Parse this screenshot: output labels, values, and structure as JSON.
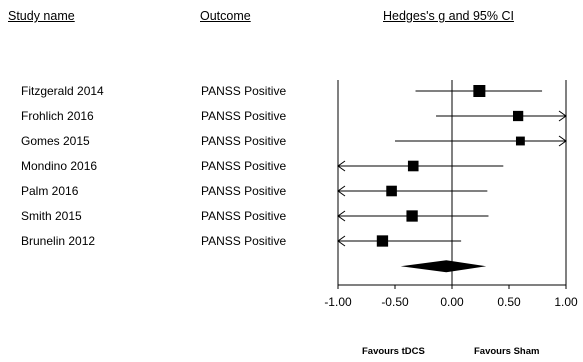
{
  "headers": {
    "study": "Study name",
    "outcome": "Outcome",
    "ci": "Hedges's g and 95% CI"
  },
  "favours": {
    "left": "Favours tDCS",
    "right": "Favours Sham"
  },
  "chart_data": {
    "type": "forest",
    "title": "",
    "xlabel": "",
    "ylabel": "",
    "xlim": [
      -1.0,
      1.0
    ],
    "x_ticks": [
      -1.0,
      -0.5,
      0.0,
      0.5,
      1.0
    ],
    "x_tick_labels": [
      "-1.00",
      "-0.50",
      "0.00",
      "0.50",
      "1.00"
    ],
    "grid": false,
    "studies": [
      {
        "name": "Fitzgerald 2014",
        "outcome": "PANSS Positive",
        "g": 0.24,
        "lower": -0.32,
        "upper": 0.79,
        "weight": 1.0
      },
      {
        "name": "Frohlich 2016",
        "outcome": "PANSS Positive",
        "g": 0.58,
        "lower": -0.14,
        "upper": 1.3,
        "weight": 0.75
      },
      {
        "name": "Gomes 2015",
        "outcome": "PANSS Positive",
        "g": 0.6,
        "lower": -0.5,
        "upper": 1.7,
        "weight": 0.55
      },
      {
        "name": "Mondino 2016",
        "outcome": "PANSS Positive",
        "g": -0.34,
        "lower": -1.2,
        "upper": 0.45,
        "weight": 0.8
      },
      {
        "name": "Palm 2016",
        "outcome": "PANSS Positive",
        "g": -0.53,
        "lower": -1.3,
        "upper": 0.31,
        "weight": 0.8
      },
      {
        "name": "Smith 2015",
        "outcome": "PANSS Positive",
        "g": -0.35,
        "lower": -1.2,
        "upper": 0.32,
        "weight": 0.9
      },
      {
        "name": "Brunelin 2012",
        "outcome": "PANSS Positive",
        "g": -0.61,
        "lower": -1.2,
        "upper": 0.08,
        "weight": 0.9
      }
    ],
    "summary": {
      "g": -0.05,
      "lower": -0.45,
      "upper": 0.3
    }
  }
}
